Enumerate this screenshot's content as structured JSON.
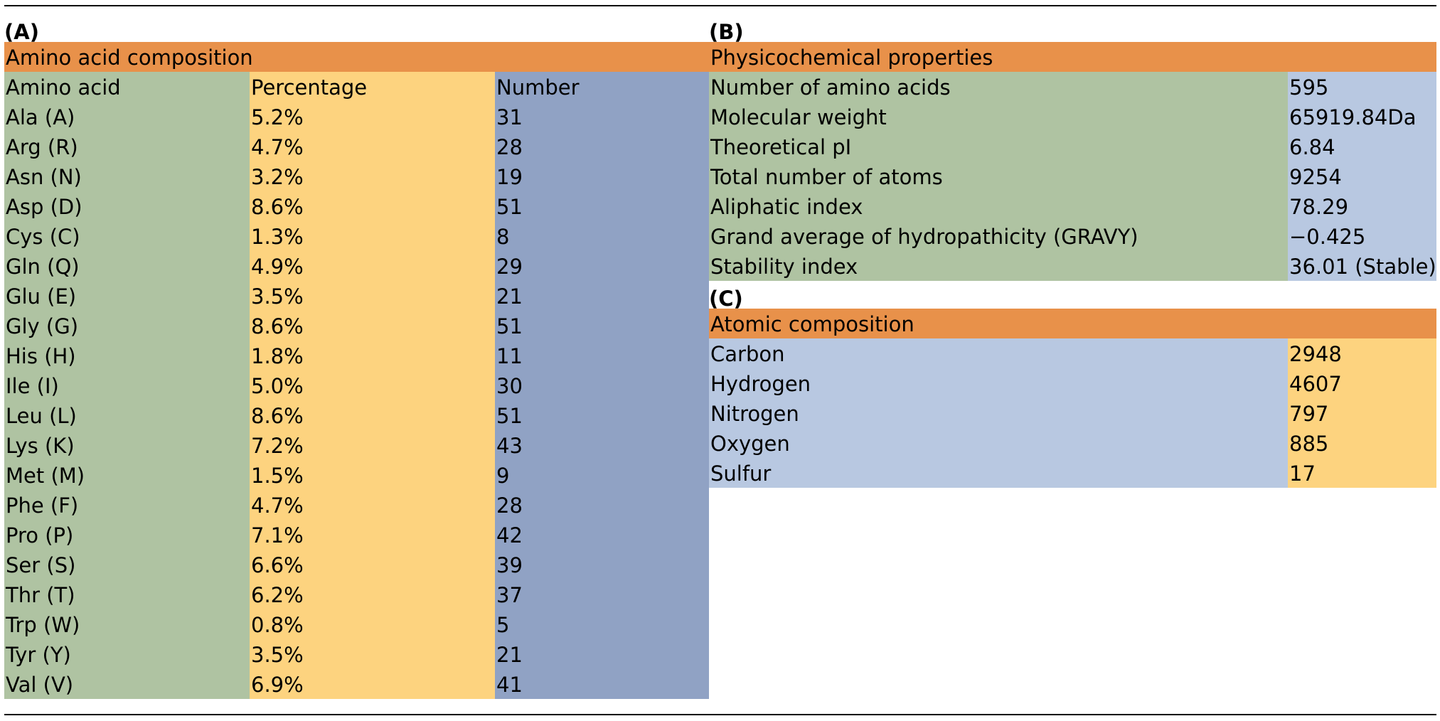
{
  "colors": {
    "header_orange": "#E8914A",
    "green": "#AFC3A2",
    "yellow": "#FDD37F",
    "blue_dark": "#90A2C4",
    "blue_light": "#B8C8E1"
  },
  "panel_a": {
    "label": "(A)",
    "title": "Amino acid composition",
    "columns": [
      "Amino acid",
      "Percentage",
      "Number"
    ],
    "rows": [
      [
        "Ala (A)",
        "5.2%",
        "31"
      ],
      [
        "Arg (R)",
        "4.7%",
        "28"
      ],
      [
        "Asn (N)",
        "3.2%",
        "19"
      ],
      [
        "Asp (D)",
        "8.6%",
        "51"
      ],
      [
        "Cys (C)",
        "1.3%",
        "8"
      ],
      [
        "Gln (Q)",
        "4.9%",
        "29"
      ],
      [
        "Glu (E)",
        "3.5%",
        "21"
      ],
      [
        "Gly (G)",
        "8.6%",
        "51"
      ],
      [
        "His (H)",
        "1.8%",
        "11"
      ],
      [
        "Ile (I)",
        "5.0%",
        "30"
      ],
      [
        "Leu (L)",
        "8.6%",
        "51"
      ],
      [
        "Lys (K)",
        "7.2%",
        "43"
      ],
      [
        "Met (M)",
        "1.5%",
        "9"
      ],
      [
        "Phe (F)",
        "4.7%",
        "28"
      ],
      [
        "Pro (P)",
        "7.1%",
        "42"
      ],
      [
        "Ser (S)",
        "6.6%",
        "39"
      ],
      [
        "Thr (T)",
        "6.2%",
        "37"
      ],
      [
        "Trp (W)",
        "0.8%",
        "5"
      ],
      [
        "Tyr (Y)",
        "3.5%",
        "21"
      ],
      [
        "Val (V)",
        "6.9%",
        "41"
      ]
    ]
  },
  "panel_b": {
    "label": "(B)",
    "title": "Physicochemical properties",
    "rows": [
      [
        "Number of amino acids",
        "595"
      ],
      [
        "Molecular weight",
        "65919.84Da"
      ],
      [
        "Theoretical pI",
        "6.84"
      ],
      [
        "Total number of atoms",
        "9254"
      ],
      [
        "Aliphatic index",
        "78.29"
      ],
      [
        "Grand average of hydropathicity (GRAVY)",
        "−0.425"
      ],
      [
        "Stability index",
        "36.01 (Stable)"
      ]
    ]
  },
  "panel_c": {
    "label": "(C)",
    "title": "Atomic composition",
    "rows": [
      [
        "Carbon",
        "2948"
      ],
      [
        "Hydrogen",
        "4607"
      ],
      [
        "Nitrogen",
        "797"
      ],
      [
        "Oxygen",
        "885"
      ],
      [
        "Sulfur",
        "17"
      ]
    ]
  }
}
